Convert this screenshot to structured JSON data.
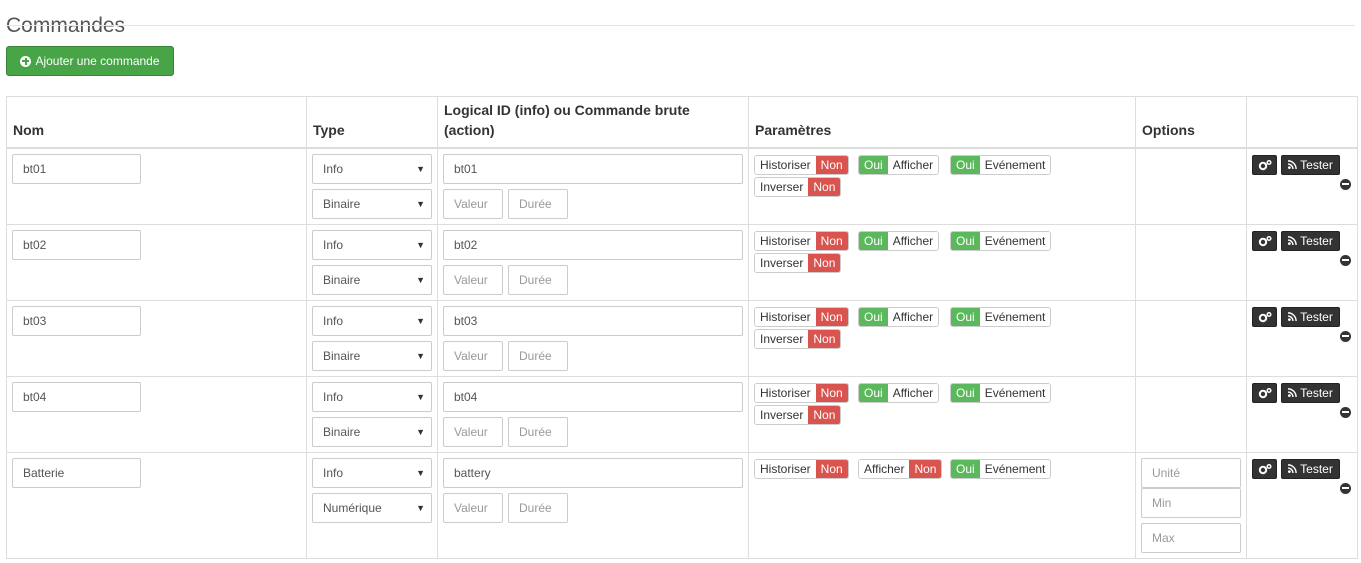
{
  "page": {
    "title": "Commandes"
  },
  "toolbar": {
    "add_label": "Ajouter une commande"
  },
  "table": {
    "headers": {
      "name": "Nom",
      "type": "Type",
      "logical_id": "Logical ID (info) ou Commande brute (action)",
      "params": "Paramètres",
      "options": "Options"
    },
    "rows": [
      {
        "name": "bt01",
        "type": "Info",
        "subtype": "Binaire",
        "logical_id": "bt01",
        "valeur_placeholder": "Valeur",
        "duree_placeholder": "Durée",
        "historiser": {
          "label": "Historiser",
          "state": "Non"
        },
        "afficher": {
          "label": "Afficher",
          "state": "Oui"
        },
        "evenement": {
          "label": "Evénement",
          "state": "Oui"
        },
        "inverser": {
          "label": "Inverser",
          "state": "Non"
        },
        "test_label": "Tester"
      },
      {
        "name": "bt02",
        "type": "Info",
        "subtype": "Binaire",
        "logical_id": "bt02",
        "valeur_placeholder": "Valeur",
        "duree_placeholder": "Durée",
        "historiser": {
          "label": "Historiser",
          "state": "Non"
        },
        "afficher": {
          "label": "Afficher",
          "state": "Oui"
        },
        "evenement": {
          "label": "Evénement",
          "state": "Oui"
        },
        "inverser": {
          "label": "Inverser",
          "state": "Non"
        },
        "test_label": "Tester"
      },
      {
        "name": "bt03",
        "type": "Info",
        "subtype": "Binaire",
        "logical_id": "bt03",
        "valeur_placeholder": "Valeur",
        "duree_placeholder": "Durée",
        "historiser": {
          "label": "Historiser",
          "state": "Non"
        },
        "afficher": {
          "label": "Afficher",
          "state": "Oui"
        },
        "evenement": {
          "label": "Evénement",
          "state": "Oui"
        },
        "inverser": {
          "label": "Inverser",
          "state": "Non"
        },
        "test_label": "Tester"
      },
      {
        "name": "bt04",
        "type": "Info",
        "subtype": "Binaire",
        "logical_id": "bt04",
        "valeur_placeholder": "Valeur",
        "duree_placeholder": "Durée",
        "historiser": {
          "label": "Historiser",
          "state": "Non"
        },
        "afficher": {
          "label": "Afficher",
          "state": "Oui"
        },
        "evenement": {
          "label": "Evénement",
          "state": "Oui"
        },
        "inverser": {
          "label": "Inverser",
          "state": "Non"
        },
        "test_label": "Tester"
      },
      {
        "name": "Batterie",
        "type": "Info",
        "subtype": "Numérique",
        "logical_id": "battery",
        "valeur_placeholder": "Valeur",
        "duree_placeholder": "Durée",
        "historiser": {
          "label": "Historiser",
          "state": "Non"
        },
        "afficher": {
          "label": "Afficher",
          "state": "Non"
        },
        "evenement": {
          "label": "Evénement",
          "state": "Oui"
        },
        "options": {
          "unite_placeholder": "Unité",
          "min_placeholder": "Min",
          "max_placeholder": "Max"
        },
        "test_label": "Tester"
      }
    ]
  },
  "colors": {
    "add_button": "#47a447",
    "oui": "#5cb85c",
    "non": "#d9534f",
    "action_button": "#333333"
  }
}
